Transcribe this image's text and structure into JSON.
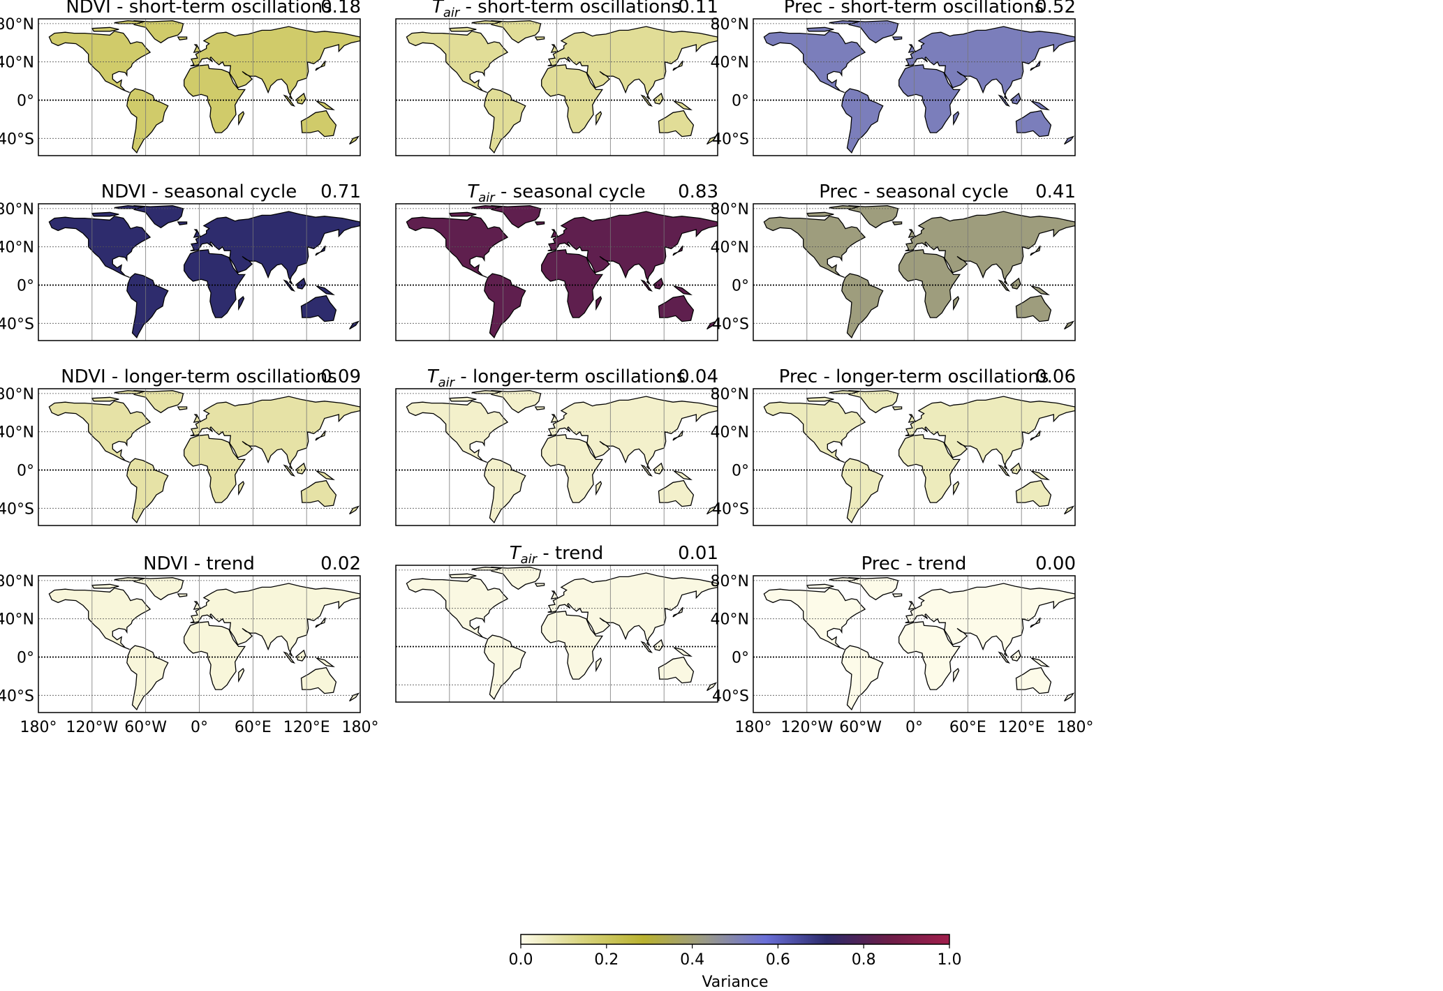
{
  "figure": {
    "latitude_ticks": [
      "80°N",
      "40°N",
      "0°",
      "40°S"
    ],
    "longitude_ticks": [
      "180°",
      "120°W",
      "60°W",
      "0°",
      "60°E",
      "120°E",
      "180°"
    ],
    "colorbar": {
      "label": "Variance",
      "ticks": [
        "0.0",
        "0.2",
        "0.4",
        "0.6",
        "0.8",
        "1.0"
      ],
      "range": [
        0,
        1
      ],
      "colors": [
        "#fdfbe9",
        "#d8d47e",
        "#b9b230",
        "#9a9a88",
        "#6a6fd8",
        "#2c2a6a",
        "#6b1d48",
        "#a01e4b"
      ]
    },
    "panels": [
      {
        "variable": "NDVI",
        "sub": "",
        "component": "short-term oscillations",
        "title_suffix": " - short-term oscillations",
        "value": "0.18",
        "land_variance": 0.18
      },
      {
        "variable": "T",
        "sub": "air",
        "component": "short-term oscillations",
        "title_suffix": " - short-term oscillations",
        "value": "0.11",
        "land_variance": 0.11
      },
      {
        "variable": "Prec",
        "sub": "",
        "component": "short-term oscillations",
        "title_suffix": " - short-term oscillations",
        "value": "0.52",
        "land_variance": 0.52
      },
      {
        "variable": "NDVI",
        "sub": "",
        "component": "seasonal cycle",
        "title_suffix": " - seasonal cycle",
        "value": "0.71",
        "land_variance": 0.71
      },
      {
        "variable": "T",
        "sub": "air",
        "component": "seasonal cycle",
        "title_suffix": " - seasonal cycle",
        "value": "0.83",
        "land_variance": 0.83
      },
      {
        "variable": "Prec",
        "sub": "",
        "component": "seasonal cycle",
        "title_suffix": " - seasonal cycle",
        "value": "0.41",
        "land_variance": 0.41
      },
      {
        "variable": "NDVI",
        "sub": "",
        "component": "longer-term oscillations",
        "title_suffix": " - longer-term oscillations",
        "value": "0.09",
        "land_variance": 0.09
      },
      {
        "variable": "T",
        "sub": "air",
        "component": "longer-term oscillations",
        "title_suffix": " - longer-term oscillations",
        "value": "0.04",
        "land_variance": 0.04
      },
      {
        "variable": "Prec",
        "sub": "",
        "component": "longer-term oscillations",
        "title_suffix": " - longer-term oscillations",
        "value": "0.06",
        "land_variance": 0.06
      },
      {
        "variable": "NDVI",
        "sub": "",
        "component": "trend",
        "title_suffix": " - trend",
        "value": "0.02",
        "land_variance": 0.02
      },
      {
        "variable": "T",
        "sub": "air",
        "component": "trend",
        "title_suffix": " - trend",
        "value": "0.01",
        "land_variance": 0.01
      },
      {
        "variable": "Prec",
        "sub": "",
        "component": "trend",
        "title_suffix": " - trend",
        "value": "0.00",
        "land_variance": 0.0
      }
    ]
  }
}
